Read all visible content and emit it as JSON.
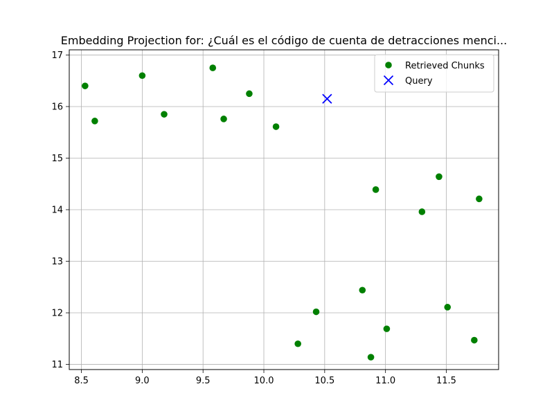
{
  "chart_data": {
    "type": "scatter",
    "title": "Embedding Projection for: ¿Cuál es el código de cuenta de detracciones menci...",
    "xlabel": "",
    "ylabel": "",
    "xlim": [
      8.4,
      11.93
    ],
    "ylim": [
      10.9,
      17.1
    ],
    "xticks": [
      8.5,
      9.0,
      9.5,
      10.0,
      10.5,
      11.0,
      11.5
    ],
    "xtick_labels": [
      "8.5",
      "9.0",
      "9.5",
      "10.0",
      "10.5",
      "11.0",
      "11.5"
    ],
    "yticks": [
      11,
      12,
      13,
      14,
      15,
      16,
      17
    ],
    "ytick_labels": [
      "11",
      "12",
      "13",
      "14",
      "15",
      "16",
      "17"
    ],
    "grid": true,
    "legend_position": "top-right",
    "series": [
      {
        "name": "Retrieved Chunks",
        "marker": "circle",
        "color": "#008000",
        "points": [
          {
            "x": 8.53,
            "y": 16.4
          },
          {
            "x": 8.61,
            "y": 15.72
          },
          {
            "x": 9.0,
            "y": 16.6
          },
          {
            "x": 9.18,
            "y": 15.85
          },
          {
            "x": 9.58,
            "y": 16.75
          },
          {
            "x": 9.67,
            "y": 15.76
          },
          {
            "x": 9.88,
            "y": 16.25
          },
          {
            "x": 10.1,
            "y": 15.61
          },
          {
            "x": 10.92,
            "y": 14.39
          },
          {
            "x": 11.44,
            "y": 14.64
          },
          {
            "x": 11.3,
            "y": 13.96
          },
          {
            "x": 11.77,
            "y": 14.21
          },
          {
            "x": 10.81,
            "y": 12.44
          },
          {
            "x": 10.43,
            "y": 12.02
          },
          {
            "x": 11.51,
            "y": 12.11
          },
          {
            "x": 11.01,
            "y": 11.69
          },
          {
            "x": 10.28,
            "y": 11.4
          },
          {
            "x": 10.88,
            "y": 11.14
          },
          {
            "x": 11.73,
            "y": 11.47
          }
        ]
      },
      {
        "name": "Query",
        "marker": "x",
        "color": "#0000ff",
        "points": [
          {
            "x": 10.52,
            "y": 16.15
          }
        ]
      }
    ]
  }
}
